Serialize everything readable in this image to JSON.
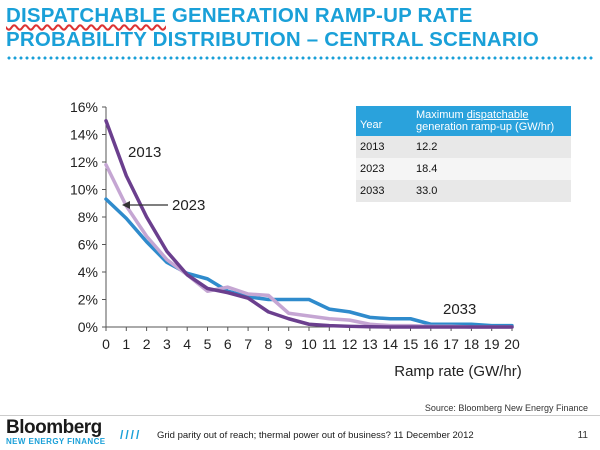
{
  "slide": {
    "title_line1_a": "DISPATCHABLE",
    "title_line1_b": " GENERATION RAMP-UP RATE",
    "title_line2": "PROBABILITY DISTRIBUTION – CENTRAL SCENARIO",
    "source": "Source: Bloomberg New Energy Finance",
    "brand_name": "Bloomberg",
    "brand_sub": "NEW ENERGY FINANCE",
    "footer_slashes": "////",
    "footer_text": "Grid parity out of reach; thermal power out of business? 11 December 2012",
    "page_number": "11"
  },
  "legend_table": {
    "header_year": "Year",
    "header_value": "Maximum dispatchable generation ramp-up (GW/hr)",
    "rows": [
      {
        "year": "2013",
        "value": "12.2"
      },
      {
        "year": "2023",
        "value": "18.4"
      },
      {
        "year": "2033",
        "value": "33.0"
      }
    ]
  },
  "colors": {
    "title": "#1aa0d8",
    "s2013": "#6b3f8e",
    "s2023": "#c5a6d3",
    "s2033": "#2f8bcc"
  },
  "chart_data": {
    "type": "line",
    "title": "",
    "xlabel": "Ramp rate (GW/hr)",
    "ylabel": "",
    "x": [
      0,
      1,
      2,
      3,
      4,
      5,
      6,
      7,
      8,
      9,
      10,
      11,
      12,
      13,
      14,
      15,
      16,
      17,
      18,
      19,
      20
    ],
    "xlim": [
      0,
      20
    ],
    "ylim": [
      0,
      16
    ],
    "yticks": [
      "0%",
      "2%",
      "4%",
      "6%",
      "8%",
      "10%",
      "12%",
      "14%",
      "16%"
    ],
    "series": [
      {
        "name": "2013",
        "color": "#6b3f8e",
        "values": [
          15.0,
          11.0,
          8.0,
          5.5,
          3.8,
          2.8,
          2.5,
          2.1,
          1.1,
          0.6,
          0.2,
          0.1,
          0.05,
          0.02,
          0,
          0,
          0,
          0,
          0,
          0,
          0
        ]
      },
      {
        "name": "2023",
        "color": "#c5a6d3",
        "values": [
          11.8,
          8.8,
          6.6,
          4.9,
          3.8,
          2.6,
          2.9,
          2.4,
          2.3,
          1.0,
          0.8,
          0.6,
          0.5,
          0.2,
          0.1,
          0.1,
          0.05,
          0.05,
          0,
          0,
          0
        ]
      },
      {
        "name": "2033",
        "color": "#2f8bcc",
        "values": [
          9.3,
          7.9,
          6.2,
          4.7,
          3.9,
          3.5,
          2.6,
          2.2,
          2.0,
          2.0,
          2.0,
          1.3,
          1.1,
          0.7,
          0.6,
          0.6,
          0.2,
          0.2,
          0.2,
          0.1,
          0.1
        ]
      }
    ],
    "annotations": [
      {
        "text": "2013",
        "series": "2013"
      },
      {
        "text": "2023",
        "series": "2023"
      },
      {
        "text": "2033",
        "series": "2033"
      }
    ]
  }
}
